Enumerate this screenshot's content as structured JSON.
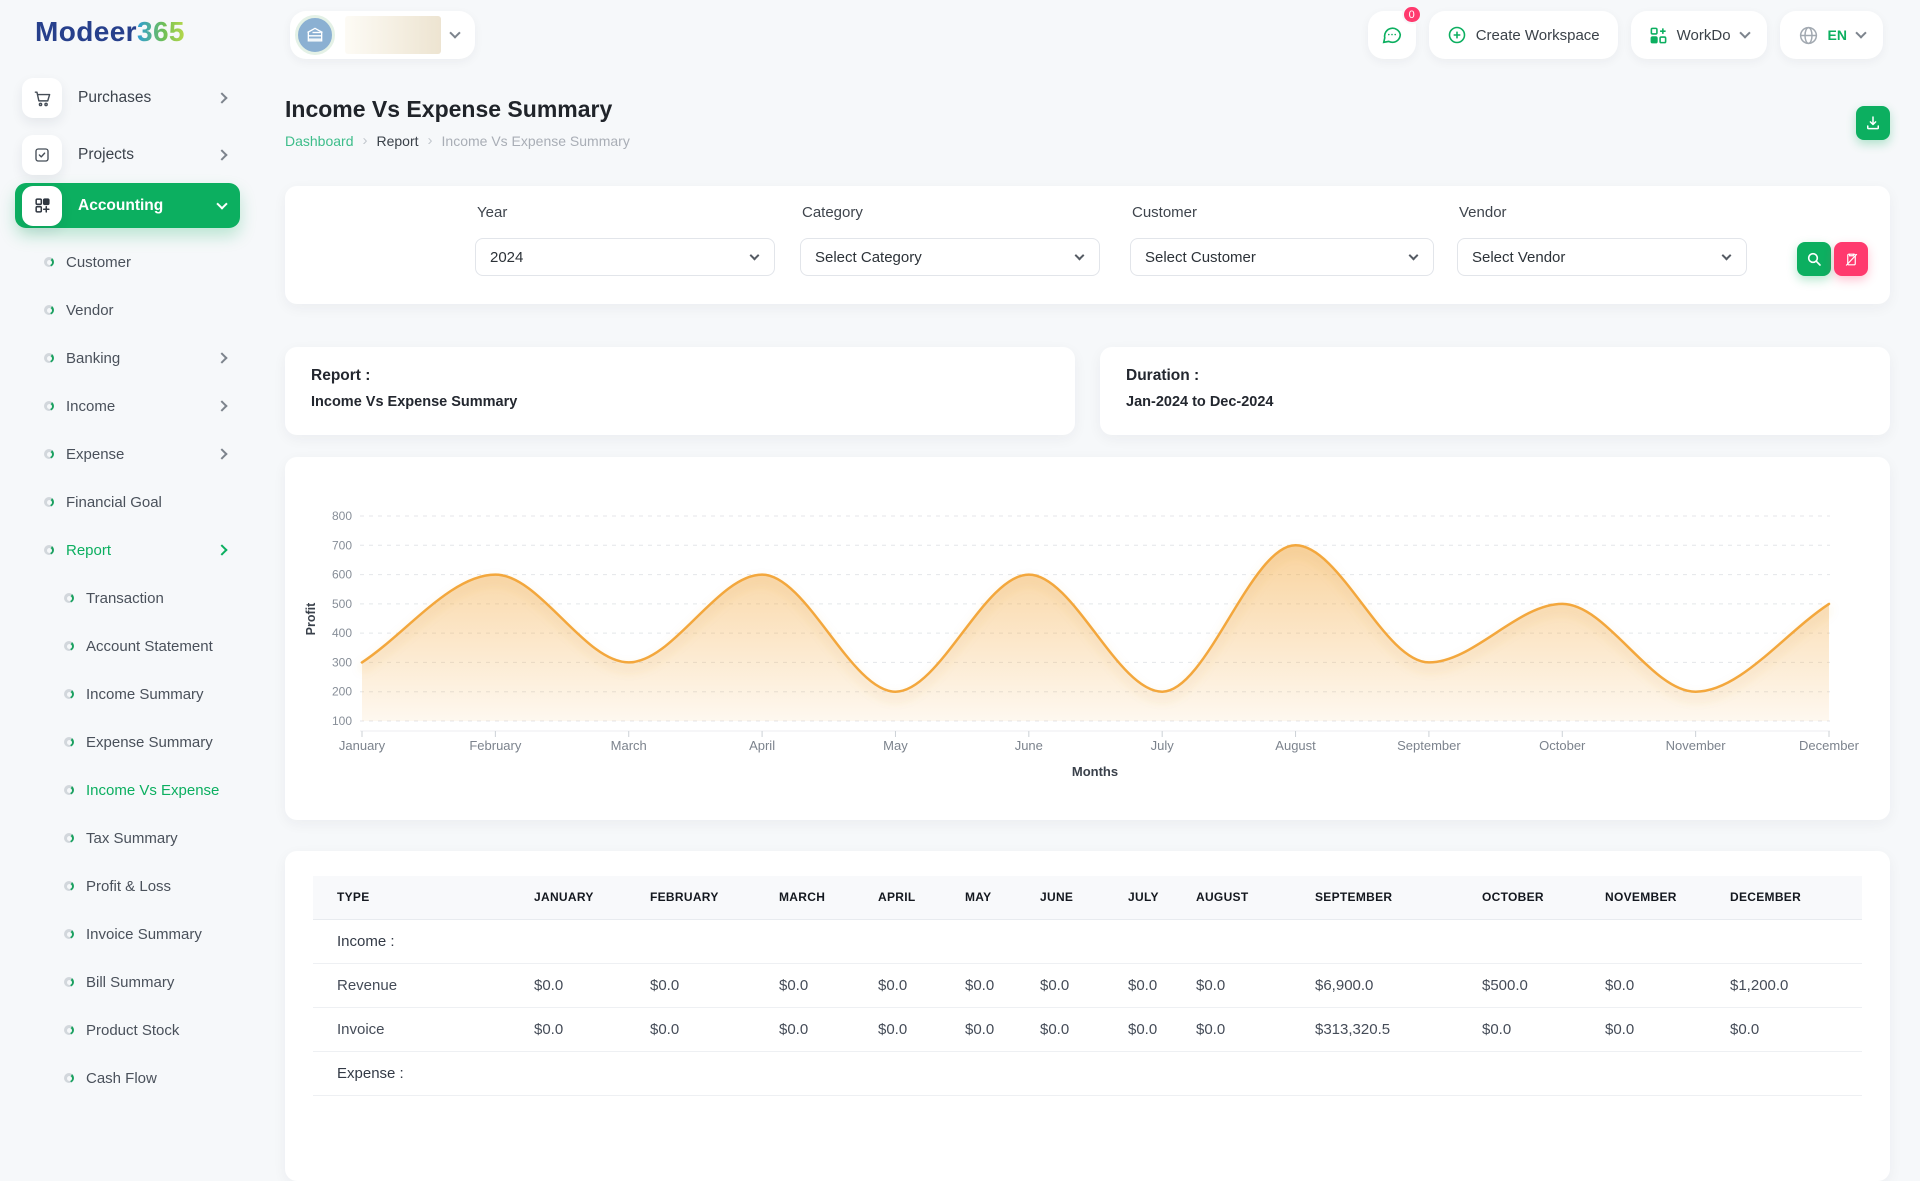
{
  "brand": {
    "name_primary": "Modeer",
    "name_accent": "365"
  },
  "topbar": {
    "chat_badge": "0",
    "create_workspace": "Create Workspace",
    "workdo": "WorkDo",
    "language": "EN"
  },
  "page": {
    "title": "Income Vs Expense Summary",
    "breadcrumb": [
      {
        "label": "Dashboard"
      },
      {
        "label": "Report"
      },
      {
        "label": "Income Vs Expense Summary"
      }
    ]
  },
  "sidebar": {
    "items": [
      {
        "label": "Purchases",
        "icon": "cart",
        "chevron": "right",
        "level": 0
      },
      {
        "label": "Projects",
        "icon": "check-square",
        "chevron": "right",
        "level": 0
      },
      {
        "label": "Accounting",
        "icon": "grid-plus",
        "chevron": "down",
        "level": 0,
        "active": true
      },
      {
        "label": "Customer",
        "level": 1
      },
      {
        "label": "Vendor",
        "level": 1
      },
      {
        "label": "Banking",
        "level": 1,
        "chevron": "right"
      },
      {
        "label": "Income",
        "level": 1,
        "chevron": "right"
      },
      {
        "label": "Expense",
        "level": 1,
        "chevron": "right"
      },
      {
        "label": "Financial Goal",
        "level": 1
      },
      {
        "label": "Report",
        "level": 1,
        "chevron": "right",
        "active": true
      },
      {
        "label": "Transaction",
        "level": 2
      },
      {
        "label": "Account Statement",
        "level": 2
      },
      {
        "label": "Income Summary",
        "level": 2
      },
      {
        "label": "Expense Summary",
        "level": 2
      },
      {
        "label": "Income Vs Expense",
        "level": 2,
        "active": true
      },
      {
        "label": "Tax Summary",
        "level": 2
      },
      {
        "label": "Profit & Loss",
        "level": 2
      },
      {
        "label": "Invoice Summary",
        "level": 2
      },
      {
        "label": "Bill Summary",
        "level": 2
      },
      {
        "label": "Product Stock",
        "level": 2
      },
      {
        "label": "Cash Flow",
        "level": 2
      }
    ]
  },
  "filters": {
    "fields": [
      {
        "label": "Year",
        "value": "2024"
      },
      {
        "label": "Category",
        "value": "Select Category"
      },
      {
        "label": "Customer",
        "value": "Select Customer"
      },
      {
        "label": "Vendor",
        "value": "Select Vendor"
      }
    ]
  },
  "summary_cards": [
    {
      "title": "Report :",
      "value": "Income Vs Expense Summary"
    },
    {
      "title": "Duration :",
      "value": "Jan-2024 to Dec-2024"
    }
  ],
  "chart_data": {
    "type": "area",
    "x": [
      "January",
      "February",
      "March",
      "April",
      "May",
      "June",
      "July",
      "August",
      "September",
      "October",
      "November",
      "December"
    ],
    "series": [
      {
        "name": "Profit",
        "values": [
          300,
          600,
          300,
          600,
          200,
          600,
          200,
          700,
          300,
          500,
          200,
          500
        ]
      }
    ],
    "title": "",
    "xlabel": "Months",
    "ylabel": "Profit",
    "ylim": [
      100,
      800
    ],
    "yticks": [
      100,
      200,
      300,
      400,
      500,
      600,
      700,
      800
    ],
    "grid": "horizontal-dashed",
    "legend": "none",
    "line_color": "#f3a73c"
  },
  "table": {
    "headers": [
      "TYPE",
      "JANUARY",
      "FEBRUARY",
      "MARCH",
      "APRIL",
      "MAY",
      "JUNE",
      "JULY",
      "AUGUST",
      "SEPTEMBER",
      "OCTOBER",
      "NOVEMBER",
      "DECEMBER"
    ],
    "rows": [
      {
        "kind": "section",
        "label": "Income :"
      },
      {
        "kind": "data",
        "label": "Revenue",
        "values": [
          "$0.0",
          "$0.0",
          "$0.0",
          "$0.0",
          "$0.0",
          "$0.0",
          "$0.0",
          "$0.0",
          "$6,900.0",
          "$500.0",
          "$0.0",
          "$1,200.0"
        ]
      },
      {
        "kind": "data",
        "label": "Invoice",
        "values": [
          "$0.0",
          "$0.0",
          "$0.0",
          "$0.0",
          "$0.0",
          "$0.0",
          "$0.0",
          "$0.0",
          "$313,320.5",
          "$0.0",
          "$0.0",
          "$0.0"
        ]
      },
      {
        "kind": "section",
        "label": "Expense :"
      }
    ]
  },
  "colors": {
    "accent": "#0caf60",
    "danger": "#ff3a6e",
    "chart_line": "#f3a73c",
    "chart_fill": "#f3a73c"
  }
}
